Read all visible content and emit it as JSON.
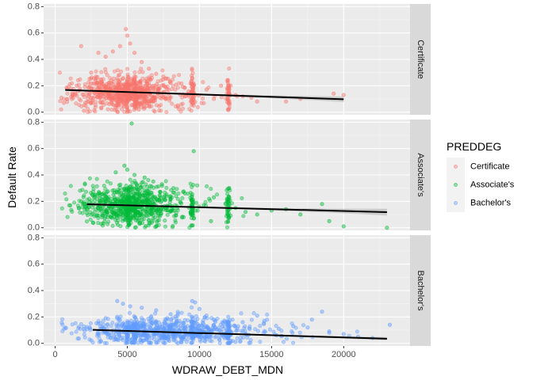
{
  "chart_data": {
    "type": "scatter",
    "xlabel": "WDRAW_DEBT_MDN",
    "ylabel": "Default Rate",
    "xlim": [
      -800,
      24600
    ],
    "ylim": [
      -0.02,
      0.82
    ],
    "x_ticks": [
      0,
      5000,
      10000,
      15000,
      20000
    ],
    "x_tick_labels": [
      "0",
      "5000",
      "10000",
      "15000",
      "20000"
    ],
    "y_ticks": [
      0.0,
      0.2,
      0.4,
      0.6,
      0.8
    ],
    "y_tick_labels": [
      "0.0",
      "0.2",
      "0.4",
      "0.6",
      "0.8"
    ],
    "grid": true,
    "legend": {
      "title": "PREDDEG",
      "placement": "right",
      "entries": [
        "Certificate",
        "Associate's",
        "Bachelor's"
      ]
    },
    "facets": [
      {
        "label": "Certificate",
        "color": "#F8766D",
        "trend": {
          "x": [
            700,
            20000
          ],
          "y": [
            0.168,
            0.098
          ]
        },
        "band_halfwidth": {
          "start": 0.008,
          "mid": 0.005,
          "end": 0.02
        },
        "cluster": {
          "x_center": 5000,
          "x_spread": 1800,
          "y_center": 0.15,
          "y_spread": 0.07
        },
        "points": [
          [
            600,
            0.07
          ],
          [
            1500,
            0.2
          ],
          [
            1800,
            0.5
          ],
          [
            2500,
            0.3
          ],
          [
            3000,
            0.45
          ],
          [
            3500,
            0.42
          ],
          [
            4000,
            0.46
          ],
          [
            4500,
            0.5
          ],
          [
            4900,
            0.63
          ],
          [
            5000,
            0.58
          ],
          [
            5200,
            0.52
          ],
          [
            5500,
            0.45
          ],
          [
            6000,
            0.38
          ],
          [
            6500,
            0.33
          ],
          [
            7000,
            0.29
          ],
          [
            7500,
            0.27
          ],
          [
            8000,
            0.22
          ],
          [
            9000,
            0.12
          ],
          [
            9500,
            0.26
          ],
          [
            9600,
            0.2
          ],
          [
            10500,
            0.17
          ],
          [
            11000,
            0.1
          ],
          [
            11500,
            0.2
          ],
          [
            12000,
            0.09
          ],
          [
            12500,
            0.13
          ],
          [
            13000,
            0.12
          ],
          [
            13600,
            0.11
          ],
          [
            14000,
            0.08
          ],
          [
            17000,
            0.1
          ],
          [
            19300,
            0.14
          ],
          [
            20000,
            0.13
          ],
          [
            3200,
            0.03
          ],
          [
            5800,
            0.02
          ],
          [
            2000,
            0.01
          ],
          [
            8500,
            0.05
          ],
          [
            1200,
            0.12
          ],
          [
            16000,
            0.08
          ]
        ]
      },
      {
        "label": "Associate's",
        "color": "#00BA38",
        "trend": {
          "x": [
            2200,
            23000
          ],
          "y": [
            0.178,
            0.118
          ]
        },
        "band_halfwidth": {
          "start": 0.01,
          "mid": 0.005,
          "end": 0.025
        },
        "cluster": {
          "x_center": 5200,
          "x_spread": 1700,
          "y_center": 0.17,
          "y_spread": 0.075
        },
        "points": [
          [
            5300,
            0.79
          ],
          [
            9600,
            0.58
          ],
          [
            4800,
            0.47
          ],
          [
            5000,
            0.44
          ],
          [
            5500,
            0.4
          ],
          [
            4200,
            0.42
          ],
          [
            6200,
            0.38
          ],
          [
            6800,
            0.35
          ],
          [
            7400,
            0.33
          ],
          [
            8200,
            0.3
          ],
          [
            9000,
            0.26
          ],
          [
            9500,
            0.2
          ],
          [
            10300,
            0.17
          ],
          [
            11000,
            0.23
          ],
          [
            11800,
            0.18
          ],
          [
            12500,
            0.15
          ],
          [
            13200,
            0.12
          ],
          [
            14000,
            0.1
          ],
          [
            15000,
            0.13
          ],
          [
            16000,
            0.14
          ],
          [
            18500,
            0.18
          ],
          [
            19000,
            0.05
          ],
          [
            20000,
            0.01
          ],
          [
            23000,
            0.0
          ],
          [
            2500,
            0.18
          ],
          [
            2800,
            0.25
          ],
          [
            3200,
            0.03
          ],
          [
            7000,
            0.01
          ],
          [
            10800,
            0.05
          ],
          [
            17000,
            0.1
          ]
        ]
      },
      {
        "label": "Bachelor's",
        "color": "#619CFF",
        "trend": {
          "x": [
            2600,
            23000
          ],
          "y": [
            0.102,
            0.035
          ]
        },
        "band_halfwidth": {
          "start": 0.008,
          "mid": 0.004,
          "end": 0.012
        },
        "cluster": {
          "x_center": 7800,
          "x_spread": 3000,
          "y_center": 0.09,
          "y_spread": 0.05
        },
        "points": [
          [
            4300,
            0.32
          ],
          [
            4700,
            0.3
          ],
          [
            5200,
            0.28
          ],
          [
            6000,
            0.27
          ],
          [
            7000,
            0.25
          ],
          [
            8000,
            0.22
          ],
          [
            9500,
            0.32
          ],
          [
            9700,
            0.31
          ],
          [
            10000,
            0.26
          ],
          [
            11000,
            0.18
          ],
          [
            12000,
            0.2
          ],
          [
            13000,
            0.16
          ],
          [
            14500,
            0.17
          ],
          [
            15500,
            0.11
          ],
          [
            16500,
            0.13
          ],
          [
            17500,
            0.12
          ],
          [
            18500,
            0.24
          ],
          [
            19000,
            0.08
          ],
          [
            20000,
            0.07
          ],
          [
            21000,
            0.05
          ],
          [
            22000,
            0.04
          ],
          [
            23200,
            0.14
          ],
          [
            3000,
            0.15
          ],
          [
            3500,
            0.19
          ],
          [
            12500,
            0.01
          ],
          [
            8500,
            0.0
          ],
          [
            17800,
            0.18
          ],
          [
            14000,
            0.21
          ]
        ]
      }
    ]
  }
}
